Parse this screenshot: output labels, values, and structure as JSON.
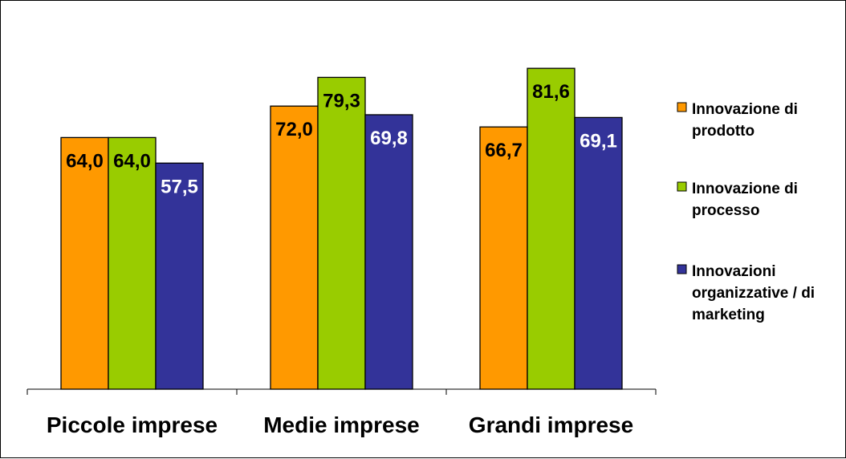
{
  "chart_data": {
    "type": "bar",
    "title": "",
    "xlabel": "",
    "ylabel": "",
    "ylim": [
      0,
      90
    ],
    "grid": false,
    "legend_position": "right",
    "categories": [
      "Piccole imprese",
      "Medie imprese",
      "Grandi imprese"
    ],
    "series": [
      {
        "name": "Innovazione di prodotto",
        "color": "#ff9900",
        "label_color": "#000000",
        "values": [
          64.0,
          72.0,
          66.7
        ],
        "labels": [
          "64,0",
          "72,0",
          "66,7"
        ]
      },
      {
        "name": "Innovazione di processo",
        "color": "#99cc00",
        "label_color": "#000000",
        "values": [
          64.0,
          79.3,
          81.6
        ],
        "labels": [
          "64,0",
          "79,3",
          "81,6"
        ]
      },
      {
        "name": "Innovazioni organizzative / di marketing",
        "color": "#333399",
        "label_color": "#ffffff",
        "values": [
          57.5,
          69.8,
          69.1
        ],
        "labels": [
          "57,5",
          "69,8",
          "69,1"
        ]
      }
    ],
    "legend": [
      {
        "lines": [
          "Innovazione di",
          "prodotto"
        ]
      },
      {
        "lines": [
          "Innovazione di",
          "processo"
        ]
      },
      {
        "lines": [
          "Innovazioni",
          "organizzative / di",
          "marketing"
        ]
      }
    ]
  }
}
